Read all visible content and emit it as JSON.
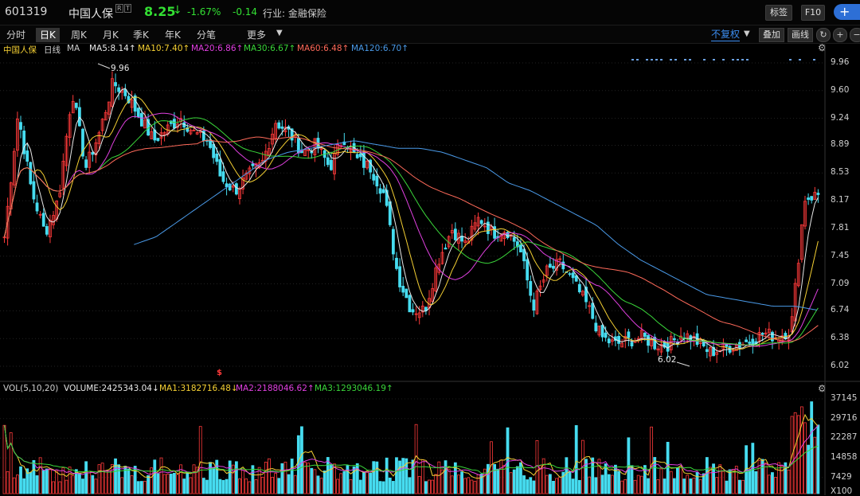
{
  "header": {
    "code": "601319",
    "name": "中国人保",
    "badge_r": "R",
    "badge_t": "T",
    "price": "8.25",
    "arrow": "↓",
    "change_pct": "-1.67%",
    "change": "-0.14",
    "industry": "行业: 金融保险",
    "btn_tag": "标签",
    "btn_f10": "F10",
    "btn_add": "+"
  },
  "tabs": [
    "分时",
    "日K",
    "周K",
    "月K",
    "季K",
    "年K",
    "分笔"
  ],
  "more": "更多",
  "right_tools": {
    "fq": "不复权",
    "overlay": "叠加",
    "draw": "画线"
  },
  "legend": {
    "name": "中国人保",
    "period": "日线",
    "ma": "MA",
    "ma5": "MA5:8.14↑",
    "ma10": "MA10:7.40↑",
    "ma20": "MA20:6.86↑",
    "ma30": "MA30:6.67↑",
    "ma60": "MA60:6.48↑",
    "ma120": "MA120:6.70↑"
  },
  "vol_legend": {
    "title": "VOL(5,10,20)",
    "volume": "VOLUME:2425343.04↓",
    "ma1": "MA1:3182716.48↓",
    "ma2": "MA2:2188046.62↑",
    "ma3": "MA3:1293046.19↑"
  },
  "colors": {
    "up": "#ff3a3a",
    "down": "#46dcf0",
    "ma5": "#e8e8e8",
    "ma10": "#f5d033",
    "ma20": "#e040e0",
    "ma30": "#3ad63a",
    "ma60": "#ff6a5a",
    "ma120": "#4a9ae8"
  },
  "annotations": {
    "high": "9.96",
    "low": "6.02",
    "marker": "$"
  },
  "chart_data": [
    {
      "type": "candlestick",
      "ylim": [
        6.02,
        9.96
      ],
      "yticks": [
        "9.96",
        "9.60",
        "9.24",
        "8.89",
        "8.53",
        "8.17",
        "7.81",
        "7.45",
        "7.09",
        "6.74",
        "6.38",
        "6.02"
      ],
      "close_path": [
        7.7,
        9.3,
        8.3,
        7.75,
        8.2,
        9.6,
        8.6,
        9.05,
        9.7,
        9.55,
        9.25,
        8.95,
        9.1,
        9.25,
        9.05,
        8.95,
        8.45,
        8.3,
        8.5,
        8.65,
        9.2,
        9.05,
        8.8,
        8.9,
        8.6,
        9.0,
        8.7,
        8.6,
        8.25,
        7.2,
        6.75,
        6.75,
        7.4,
        7.8,
        7.6,
        7.95,
        7.75,
        7.8,
        7.55,
        6.8,
        7.25,
        7.35,
        7.1,
        6.8,
        6.4,
        6.3,
        6.35,
        6.4,
        6.3,
        6.3,
        6.45,
        6.35,
        6.2,
        6.25,
        6.3,
        6.35,
        6.45,
        6.4,
        6.5,
        8.2,
        8.25
      ],
      "ma120_path": [
        7.6,
        7.7,
        7.9,
        8.1,
        8.3,
        8.5,
        8.7,
        8.8,
        8.85,
        8.9,
        8.95,
        8.9,
        8.85,
        8.85,
        8.8,
        8.7,
        8.6,
        8.4,
        8.3,
        8.15,
        8.0,
        7.85,
        7.6,
        7.4,
        7.25,
        7.1,
        6.95,
        6.9,
        6.85,
        6.8,
        6.8,
        6.75
      ]
    },
    {
      "type": "bar",
      "series_name": "VOLUME",
      "yticks": [
        "37145",
        "29716",
        "22287",
        "14858",
        "7429",
        "X100"
      ]
    }
  ]
}
